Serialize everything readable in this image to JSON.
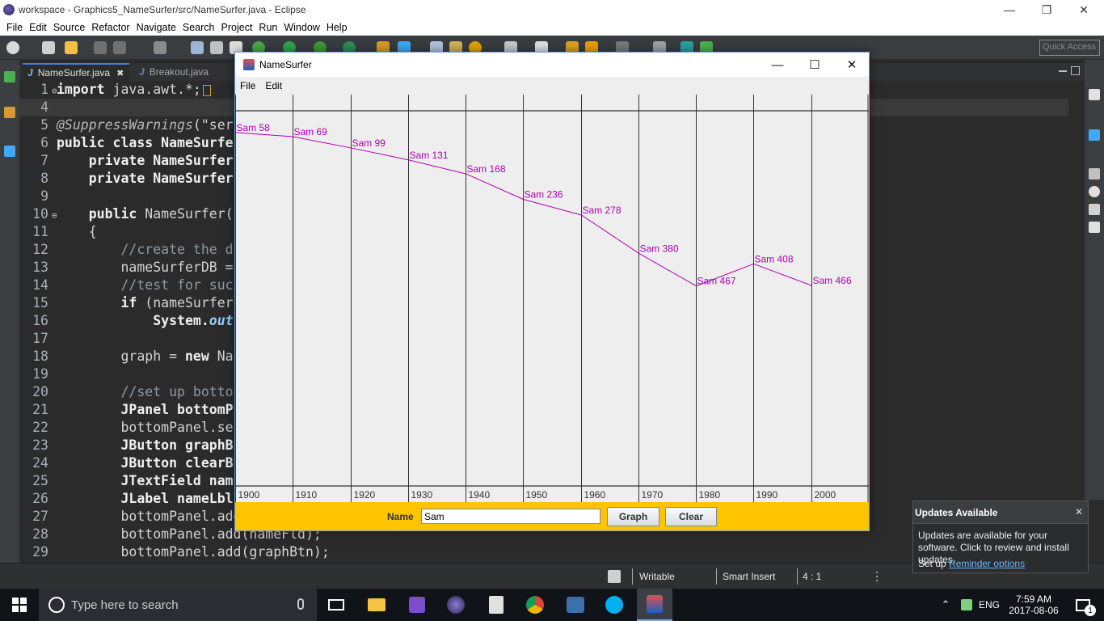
{
  "eclipse": {
    "title": "workspace - Graphics5_NameSurfer/src/NameSurfer.java - Eclipse",
    "menus": [
      "File",
      "Edit",
      "Source",
      "Refactor",
      "Navigate",
      "Search",
      "Project",
      "Run",
      "Window",
      "Help"
    ],
    "quick_access": "Quick Access",
    "tabs": [
      {
        "label": "NameSurfer.java",
        "active": true
      },
      {
        "label": "Breakout.java",
        "active": false
      }
    ],
    "code_lines": [
      {
        "n": "1",
        "marker": "⊖"
      },
      {
        "n": "4"
      },
      {
        "n": "5"
      },
      {
        "n": "6"
      },
      {
        "n": "7"
      },
      {
        "n": "8"
      },
      {
        "n": "9"
      },
      {
        "n": "10",
        "marker": "⊖"
      },
      {
        "n": "11"
      },
      {
        "n": "12"
      },
      {
        "n": "13"
      },
      {
        "n": "14"
      },
      {
        "n": "15"
      },
      {
        "n": "16"
      },
      {
        "n": "17"
      },
      {
        "n": "18"
      },
      {
        "n": "19"
      },
      {
        "n": "20"
      },
      {
        "n": "21"
      },
      {
        "n": "22"
      },
      {
        "n": "23"
      },
      {
        "n": "24"
      },
      {
        "n": "25"
      },
      {
        "n": "26"
      },
      {
        "n": "27"
      },
      {
        "n": "28"
      },
      {
        "n": "29"
      }
    ],
    "code": {
      "l1_kw": "import",
      "l1_rest": " java.awt.*;",
      "l5_ann": "@SuppressWarnings",
      "l5_rest": "(\"ser",
      "l6_kw": "public class",
      "l6_rest": " NameSurfe",
      "l7_kw": "private",
      "l7_rest": " NameSurfer",
      "l8_kw": "private",
      "l8_rest": " NameSurfer",
      "l10_kw": "public",
      "l10_rest": " NameSurfer(",
      "l11": "{",
      "l12": "//create the d",
      "l13": "nameSurferDB =",
      "l14": "//test for suc",
      "l15_kw": "if",
      "l15_rest": " (nameSurfer",
      "l16_a": "System.",
      "l16_b": "out",
      "l18_a": "graph = ",
      "l18_kw": "new",
      "l18_b": " Na",
      "l20": "//set up botto",
      "l21_kw": "JPanel",
      "l21_rest": " bottomP",
      "l22": "bottomPanel.se",
      "l23_kw": "JButton",
      "l23_rest": " graphB",
      "l24_kw": "JButton",
      "l24_rest": " clearB",
      "l25_kw": "JTextField",
      "l25_rest": " nam",
      "l26_kw": "JLabel",
      "l26_rest": " nameLbl",
      "l27": "bottomPanel.add",
      "l28": "bottomPanel.add(nameFld);",
      "l29": "bottomPanel.add(graphBtn);"
    },
    "status": {
      "writable": "Writable",
      "insert": "Smart Insert",
      "position": "4 : 1"
    }
  },
  "namesurfer": {
    "title": "NameSurfer",
    "menus": [
      "File",
      "Edit"
    ],
    "name_label": "Name",
    "name_value": "Sam",
    "graph_button": "Graph",
    "clear_button": "Clear",
    "line_color": "#b000b0",
    "bar_color": "#ffc400"
  },
  "chart_data": {
    "type": "line",
    "x": [
      "1900",
      "1910",
      "1920",
      "1930",
      "1940",
      "1950",
      "1960",
      "1970",
      "1980",
      "1990",
      "2000"
    ],
    "series": [
      {
        "name": "Sam",
        "values": [
          58,
          69,
          99,
          131,
          168,
          236,
          278,
          380,
          467,
          408,
          466
        ],
        "labels": [
          "Sam 58",
          "Sam 69",
          "Sam 99",
          "Sam 131",
          "Sam 168",
          "Sam 236",
          "Sam 278",
          "Sam 380",
          "Sam 467",
          "Sam 408",
          "Sam 466"
        ]
      }
    ],
    "ylim": [
      0,
      1000
    ],
    "y_inverted": true
  },
  "toast": {
    "title": "Updates Available",
    "body": "Updates are available for your software. Click to review and install updates.",
    "setup_prefix": "Set up ",
    "setup_link": "Reminder options"
  },
  "taskbar": {
    "search_placeholder": "Type here to search",
    "language": "ENG",
    "time": "7:59 AM",
    "date": "2017-08-06",
    "notifications": "1"
  }
}
